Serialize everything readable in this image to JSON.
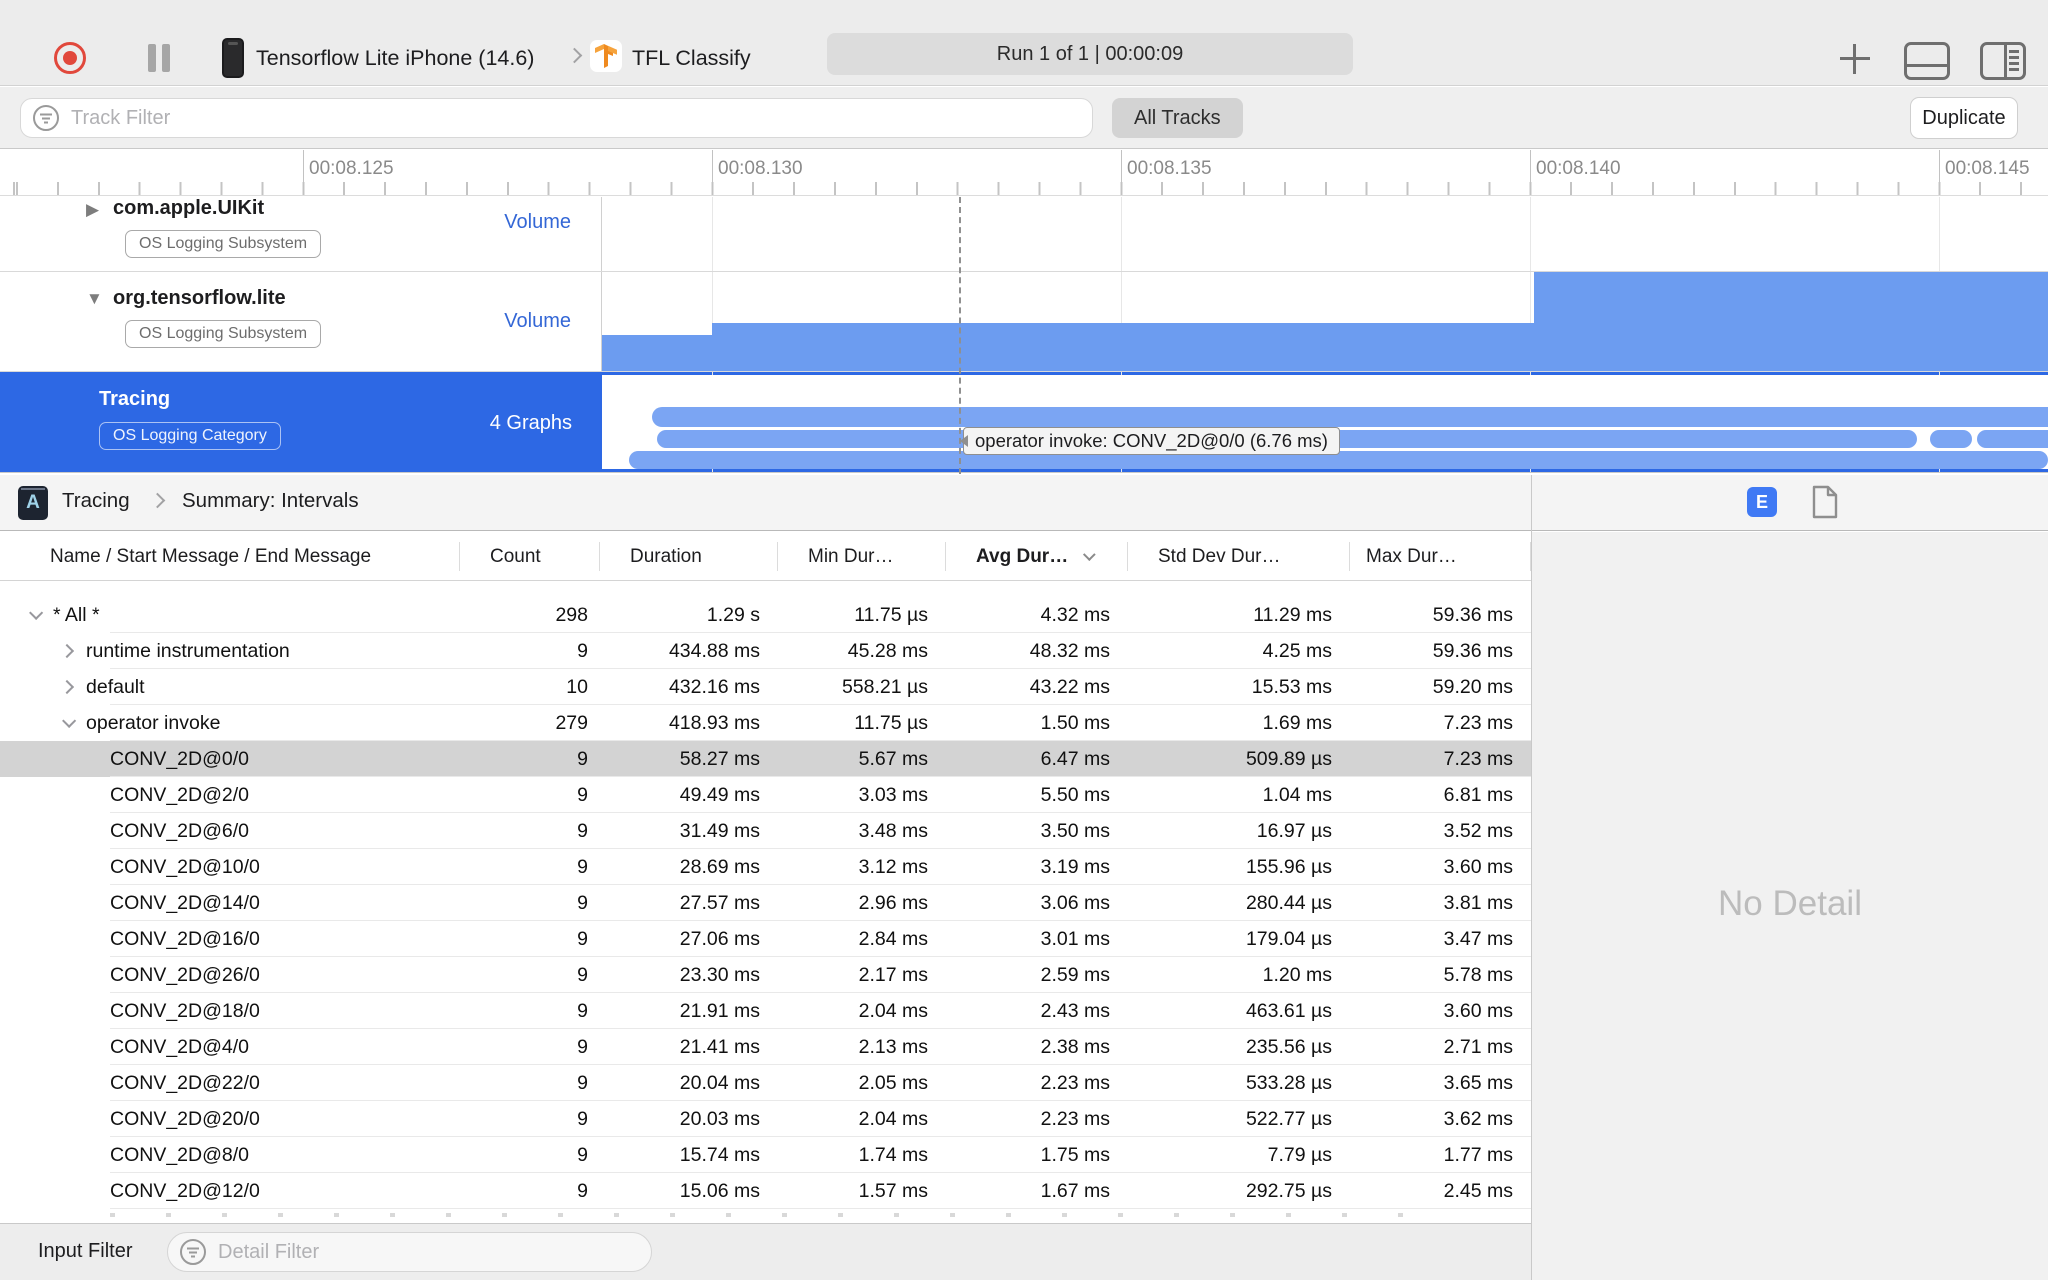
{
  "toolbar": {
    "device_name": "Tensorflow Lite iPhone (14.6)",
    "app_name": "TFL Classify",
    "run_status": "Run 1 of 1  |  00:00:09"
  },
  "filter_bar": {
    "track_filter_placeholder": "Track Filter",
    "all_tracks_label": "All Tracks",
    "duplicate_label": "Duplicate"
  },
  "ruler": {
    "ticks": [
      "00:08.125",
      "00:08.130",
      "00:08.135",
      "00:08.140",
      "00:08.145"
    ]
  },
  "tracks": [
    {
      "title": "com.apple.UIKit",
      "badge": "OS Logging Subsystem",
      "meta": "Volume"
    },
    {
      "title": "org.tensorflow.lite",
      "badge": "OS Logging Subsystem",
      "meta": "Volume"
    },
    {
      "title": "Tracing",
      "badge": "OS Logging Category",
      "meta": "4 Graphs"
    }
  ],
  "tooltip_text": "operator invoke: CONV_2D@0/0 (6.76 ms)",
  "detail": {
    "breadcrumb": {
      "instrument": "Tracing",
      "page": "Summary: Intervals",
      "icon_letter": "A"
    },
    "e_badge": "E",
    "columns": [
      "Name / Start Message / End Message",
      "Count",
      "Duration",
      "Min Dur…",
      "Avg Dur…",
      "Std Dev Dur…",
      "Max Dur…"
    ],
    "sorted_column": "Avg Dur…",
    "rows": [
      {
        "level": 1,
        "chevron": "down",
        "selected": false,
        "name": "* All *",
        "count": "298",
        "duration": "1.29 s",
        "min": "11.75 µs",
        "avg": "4.32 ms",
        "std": "11.29 ms",
        "max": "59.36 ms"
      },
      {
        "level": 2,
        "chevron": "right",
        "selected": false,
        "name": "runtime instrumentation",
        "count": "9",
        "duration": "434.88 ms",
        "min": "45.28 ms",
        "avg": "48.32 ms",
        "std": "4.25 ms",
        "max": "59.36 ms"
      },
      {
        "level": 2,
        "chevron": "right",
        "selected": false,
        "name": "default",
        "count": "10",
        "duration": "432.16 ms",
        "min": "558.21 µs",
        "avg": "43.22 ms",
        "std": "15.53 ms",
        "max": "59.20 ms"
      },
      {
        "level": 2,
        "chevron": "down",
        "selected": false,
        "name": "operator invoke",
        "count": "279",
        "duration": "418.93 ms",
        "min": "11.75 µs",
        "avg": "1.50 ms",
        "std": "1.69 ms",
        "max": "7.23 ms"
      },
      {
        "level": 3,
        "chevron": "",
        "selected": true,
        "name": "CONV_2D@0/0",
        "count": "9",
        "duration": "58.27 ms",
        "min": "5.67 ms",
        "avg": "6.47 ms",
        "std": "509.89 µs",
        "max": "7.23 ms"
      },
      {
        "level": 3,
        "chevron": "",
        "selected": false,
        "name": "CONV_2D@2/0",
        "count": "9",
        "duration": "49.49 ms",
        "min": "3.03 ms",
        "avg": "5.50 ms",
        "std": "1.04 ms",
        "max": "6.81 ms"
      },
      {
        "level": 3,
        "chevron": "",
        "selected": false,
        "name": "CONV_2D@6/0",
        "count": "9",
        "duration": "31.49 ms",
        "min": "3.48 ms",
        "avg": "3.50 ms",
        "std": "16.97 µs",
        "max": "3.52 ms"
      },
      {
        "level": 3,
        "chevron": "",
        "selected": false,
        "name": "CONV_2D@10/0",
        "count": "9",
        "duration": "28.69 ms",
        "min": "3.12 ms",
        "avg": "3.19 ms",
        "std": "155.96 µs",
        "max": "3.60 ms"
      },
      {
        "level": 3,
        "chevron": "",
        "selected": false,
        "name": "CONV_2D@14/0",
        "count": "9",
        "duration": "27.57 ms",
        "min": "2.96 ms",
        "avg": "3.06 ms",
        "std": "280.44 µs",
        "max": "3.81 ms"
      },
      {
        "level": 3,
        "chevron": "",
        "selected": false,
        "name": "CONV_2D@16/0",
        "count": "9",
        "duration": "27.06 ms",
        "min": "2.84 ms",
        "avg": "3.01 ms",
        "std": "179.04 µs",
        "max": "3.47 ms"
      },
      {
        "level": 3,
        "chevron": "",
        "selected": false,
        "name": "CONV_2D@26/0",
        "count": "9",
        "duration": "23.30 ms",
        "min": "2.17 ms",
        "avg": "2.59 ms",
        "std": "1.20 ms",
        "max": "5.78 ms"
      },
      {
        "level": 3,
        "chevron": "",
        "selected": false,
        "name": "CONV_2D@18/0",
        "count": "9",
        "duration": "21.91 ms",
        "min": "2.04 ms",
        "avg": "2.43 ms",
        "std": "463.61 µs",
        "max": "3.60 ms"
      },
      {
        "level": 3,
        "chevron": "",
        "selected": false,
        "name": "CONV_2D@4/0",
        "count": "9",
        "duration": "21.41 ms",
        "min": "2.13 ms",
        "avg": "2.38 ms",
        "std": "235.56 µs",
        "max": "2.71 ms"
      },
      {
        "level": 3,
        "chevron": "",
        "selected": false,
        "name": "CONV_2D@22/0",
        "count": "9",
        "duration": "20.04 ms",
        "min": "2.05 ms",
        "avg": "2.23 ms",
        "std": "533.28 µs",
        "max": "3.65 ms"
      },
      {
        "level": 3,
        "chevron": "",
        "selected": false,
        "name": "CONV_2D@20/0",
        "count": "9",
        "duration": "20.03 ms",
        "min": "2.04 ms",
        "avg": "2.23 ms",
        "std": "522.77 µs",
        "max": "3.62 ms"
      },
      {
        "level": 3,
        "chevron": "",
        "selected": false,
        "name": "CONV_2D@8/0",
        "count": "9",
        "duration": "15.74 ms",
        "min": "1.74 ms",
        "avg": "1.75 ms",
        "std": "7.79 µs",
        "max": "1.77 ms"
      },
      {
        "level": 3,
        "chevron": "",
        "selected": false,
        "name": "CONV_2D@12/0",
        "count": "9",
        "duration": "15.06 ms",
        "min": "1.57 ms",
        "avg": "1.67 ms",
        "std": "292.75 µs",
        "max": "2.45 ms"
      }
    ],
    "no_detail_text": "No Detail"
  },
  "bottom_bar": {
    "input_filter_label": "Input Filter",
    "detail_filter_placeholder": "Detail Filter"
  }
}
